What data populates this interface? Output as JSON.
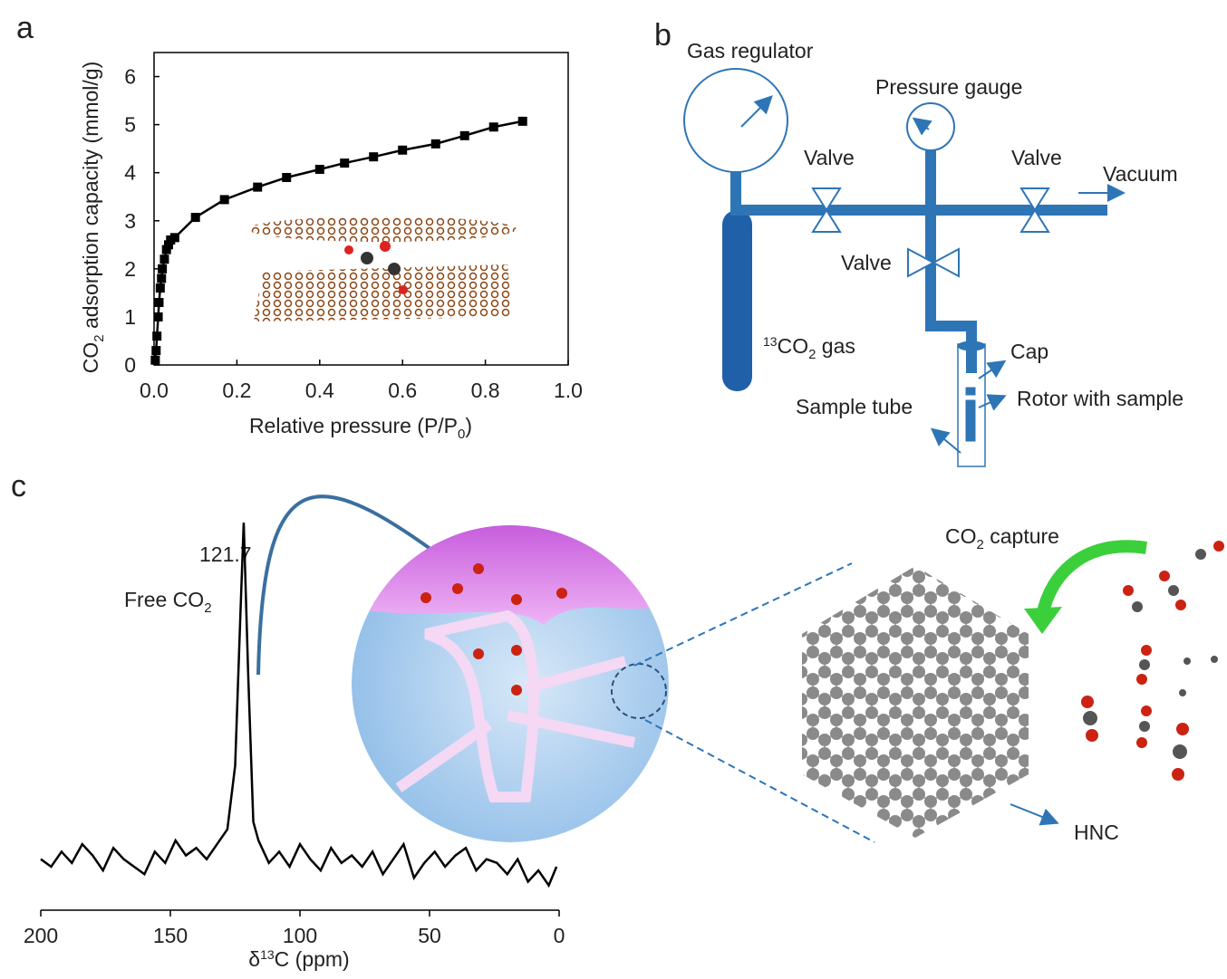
{
  "panels": [
    "a",
    "b",
    "c"
  ],
  "chart_data": [
    {
      "type": "line",
      "marker": "square",
      "color": "#000000",
      "ylabel": [
        "CO",
        "2",
        " adsorption capacity (mmol/g)"
      ],
      "xlabel": [
        "Relative pressure (P/P",
        "0",
        ")"
      ],
      "x": [
        0.003,
        0.005,
        0.007,
        0.01,
        0.012,
        0.015,
        0.018,
        0.02,
        0.025,
        0.03,
        0.035,
        0.04,
        0.05,
        0.1,
        0.17,
        0.25,
        0.32,
        0.4,
        0.46,
        0.53,
        0.6,
        0.68,
        0.75,
        0.82,
        0.89
      ],
      "values": [
        0.1,
        0.3,
        0.6,
        1.0,
        1.3,
        1.6,
        1.8,
        2.0,
        2.2,
        2.4,
        2.5,
        2.6,
        2.65,
        3.07,
        3.44,
        3.7,
        3.9,
        4.07,
        4.2,
        4.33,
        4.47,
        4.6,
        4.77,
        4.95,
        5.07
      ],
      "xlim": [
        0,
        1
      ],
      "ylim": [
        0,
        6.5
      ],
      "xticks": [
        {
          "value": 0,
          "label": "0.0"
        },
        {
          "value": 0.2,
          "label": "0.2"
        },
        {
          "value": 0.4,
          "label": "0.4"
        },
        {
          "value": 0.6,
          "label": "0.6"
        },
        {
          "value": 0.8,
          "label": "0.8"
        },
        {
          "value": 1,
          "label": "1.0"
        }
      ],
      "yticks": [
        0,
        1,
        2,
        3,
        4,
        5,
        6
      ]
    },
    {
      "type": "line",
      "marker": "none",
      "color": "#000000",
      "xlabel": [
        "δ",
        "13",
        "C (ppm)"
      ],
      "annotations": [
        "121.7",
        "Free CO",
        "2"
      ],
      "x": [
        200,
        196,
        192,
        188,
        184,
        180,
        176,
        172,
        168,
        164,
        160,
        156,
        152,
        148,
        144,
        140,
        136,
        132,
        128,
        125,
        123,
        121.7,
        120,
        118,
        116,
        112,
        108,
        104,
        100,
        96,
        92,
        88,
        84,
        80,
        76,
        72,
        68,
        64,
        60,
        56,
        52,
        48,
        44,
        40,
        36,
        32,
        28,
        24,
        20,
        16,
        12,
        8,
        4,
        1
      ],
      "values": [
        10,
        8,
        12,
        9,
        14,
        11,
        7,
        13,
        10,
        8,
        6,
        12,
        9,
        15,
        11,
        13,
        10,
        14,
        18,
        35,
        75,
        100,
        60,
        20,
        15,
        9,
        12,
        8,
        14,
        10,
        7,
        13,
        9,
        11,
        8,
        12,
        6,
        10,
        14,
        5,
        9,
        12,
        8,
        11,
        13,
        7,
        10,
        9,
        6,
        10,
        4,
        7,
        3,
        8
      ],
      "xlim": [
        200,
        0
      ],
      "ylim": [
        0,
        100
      ],
      "xticks": [
        200,
        150,
        100,
        50,
        0
      ]
    }
  ],
  "diagram": {
    "gas_regulator": "Gas regulator",
    "pressure_gauge": "Pressure gauge",
    "valves": [
      "Valve",
      "Valve",
      "Valve"
    ],
    "vacuum": "Vacuum",
    "gas": [
      "13",
      "CO",
      "2",
      " gas"
    ],
    "cap": "Cap",
    "rotor": "Rotor with sample",
    "sample_tube": "Sample tube"
  },
  "illustration": {
    "capture": [
      "CO",
      "2",
      " capture"
    ],
    "hnc": "HNC"
  }
}
